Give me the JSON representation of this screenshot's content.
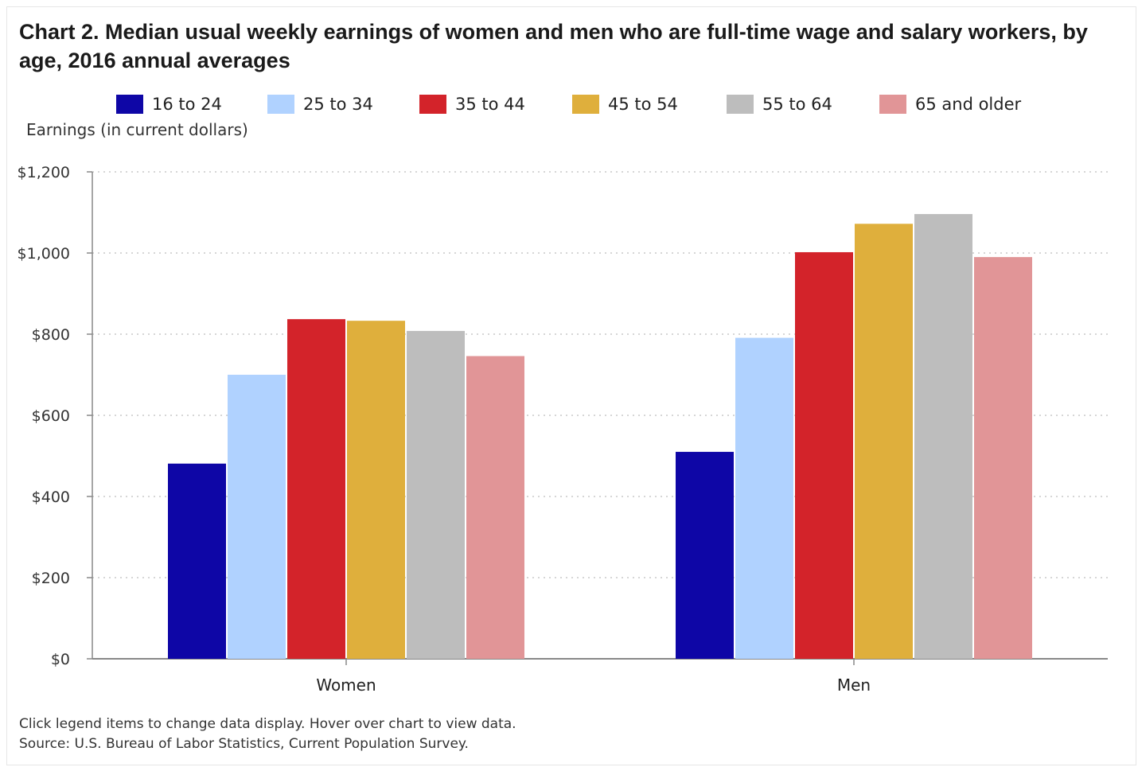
{
  "title": "Chart 2. Median usual weekly earnings of women and men who are full-time wage and salary workers, by age, 2016 annual averages",
  "footnotes": {
    "interaction_note": "Click legend items to change data display. Hover over chart to view data.",
    "source": "Source: U.S. Bureau of Labor Statistics, Current Population Survey."
  },
  "chart_data": {
    "type": "bar",
    "title": "Chart 2. Median usual weekly earnings of women and men who are full-time wage and salary workers, by age, 2016 annual averages",
    "xlabel": "",
    "ylabel": "Earnings (in current dollars)",
    "categories": [
      "Women",
      "Men"
    ],
    "ylim": [
      0,
      1200
    ],
    "yticks": [
      0,
      200,
      400,
      600,
      800,
      1000,
      1200
    ],
    "ytick_labels": [
      "$0",
      "$200",
      "$400",
      "$600",
      "$800",
      "$1,000",
      "$1,200"
    ],
    "grid": true,
    "legend_position": "top",
    "series": [
      {
        "name": "16 to 24",
        "color": "#0e06a6",
        "values": [
          481,
          510
        ]
      },
      {
        "name": "25 to 34",
        "color": "#b0d2ff",
        "values": [
          700,
          791
        ]
      },
      {
        "name": "35 to 44",
        "color": "#d3232a",
        "values": [
          837,
          1002
        ]
      },
      {
        "name": "45 to 54",
        "color": "#dfaf3c",
        "values": [
          833,
          1072
        ]
      },
      {
        "name": "55 to 64",
        "color": "#bdbdbd",
        "values": [
          808,
          1096
        ]
      },
      {
        "name": "65 and older",
        "color": "#e19597",
        "values": [
          746,
          990
        ]
      }
    ]
  }
}
